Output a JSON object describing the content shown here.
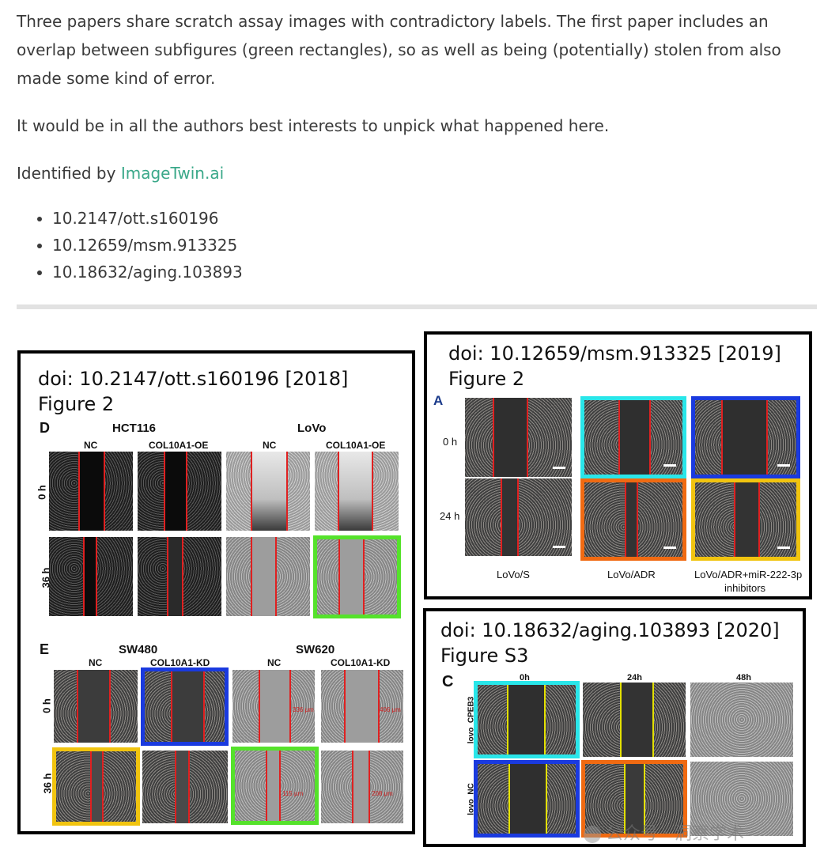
{
  "intro": {
    "p1": "Three papers share scratch assay images with contradictory labels. The first paper includes an overlap between subfigures (green rectangles), so as well as being (potentially) stolen from also made some kind of error.",
    "p2": "It would be in all the authors best interests to unpick what happened here.",
    "p3_prefix": "Identified by ",
    "p3_link": "ImageTwin.ai"
  },
  "dois": [
    "10.2147/ott.s160196",
    "10.12659/msm.913325",
    "10.18632/aging.103893"
  ],
  "panel1": {
    "title_line1": "doi: 10.2147/ott.s160196 [2018]",
    "title_line2": "Figure 2",
    "sectionD": "D",
    "hct116": "HCT116",
    "lovo": "LoVo",
    "nc": "NC",
    "oe": "COL10A1-OE",
    "row0": "0 h",
    "row36": "36 h",
    "sectionE": "E",
    "sw480": "SW480",
    "sw620": "SW620",
    "kd": "COL10A1-KD",
    "meas": [
      "336 μm",
      "406 μm",
      "115 μm",
      "208 μm"
    ]
  },
  "panel2": {
    "title_line1": "doi: 10.12659/msm.913325 [2019]",
    "title_line2": "Figure 2",
    "sectionA": "A",
    "row0": "0 h",
    "row24": "24 h",
    "col1": "LoVo/S",
    "col2": "LoVo/ADR",
    "col3_line1": "LoVo/ADR+miR-222-3p",
    "col3_line2": "inhibitors"
  },
  "panel3": {
    "title_line1": "doi: 10.18632/aging.103893 [2020]",
    "title_line2": "Figure S3",
    "sectionC": "C",
    "t0": "0h",
    "t24": "24h",
    "t48": "48h",
    "row1": "lovo_CPEB3",
    "row2": "lovo_NC"
  },
  "watermark": "公众号 · 洞察学术",
  "colors": {
    "link": "#3aa889",
    "green": "#55e22b",
    "blue": "#1a3adf",
    "yellow": "#f1c40f",
    "cyan": "#29e6e9",
    "orange": "#f06a12"
  }
}
